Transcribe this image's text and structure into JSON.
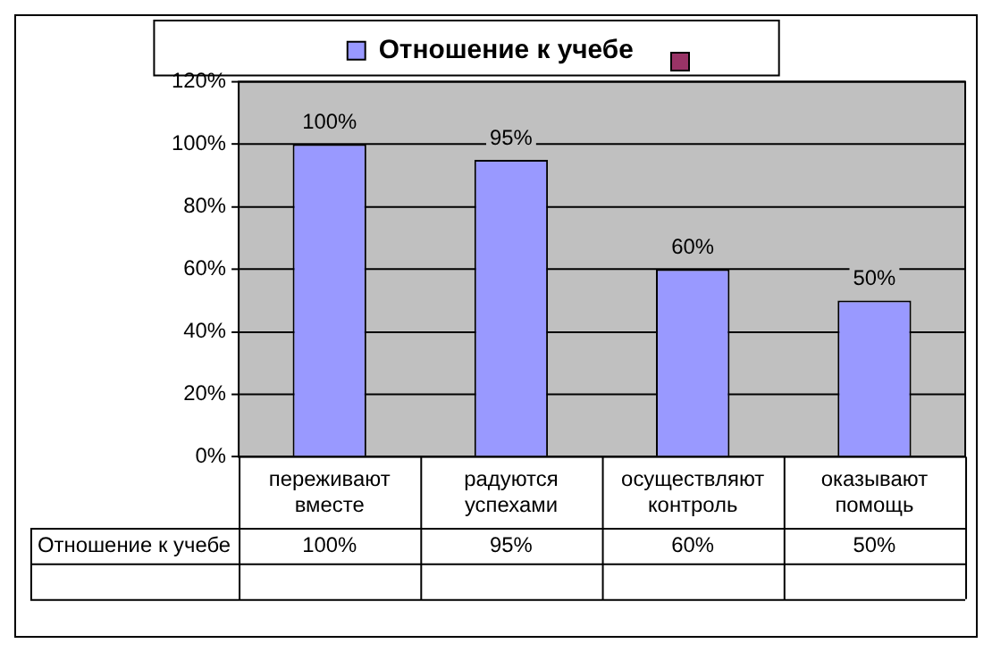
{
  "chart_data": {
    "type": "bar",
    "categories": [
      "переживают вместе",
      "радуются успехами",
      "осуществляют контроль",
      "оказывают помощь"
    ],
    "series": [
      {
        "name": "Отношение к учебе",
        "color": "#9999ff",
        "values": [
          100,
          95,
          60,
          50
        ],
        "value_labels": [
          "100%",
          "95%",
          "60%",
          "50%"
        ]
      }
    ],
    "ylim": [
      0,
      120
    ],
    "yticks": [
      {
        "value": 0,
        "label": "0%"
      },
      {
        "value": 20,
        "label": "20%"
      },
      {
        "value": 40,
        "label": "40%"
      },
      {
        "value": 60,
        "label": "60%"
      },
      {
        "value": 80,
        "label": "80%"
      },
      {
        "value": 100,
        "label": "100%"
      },
      {
        "value": 120,
        "label": "120%"
      }
    ],
    "grid": "y",
    "legend": "top",
    "data_labels": true
  }
}
